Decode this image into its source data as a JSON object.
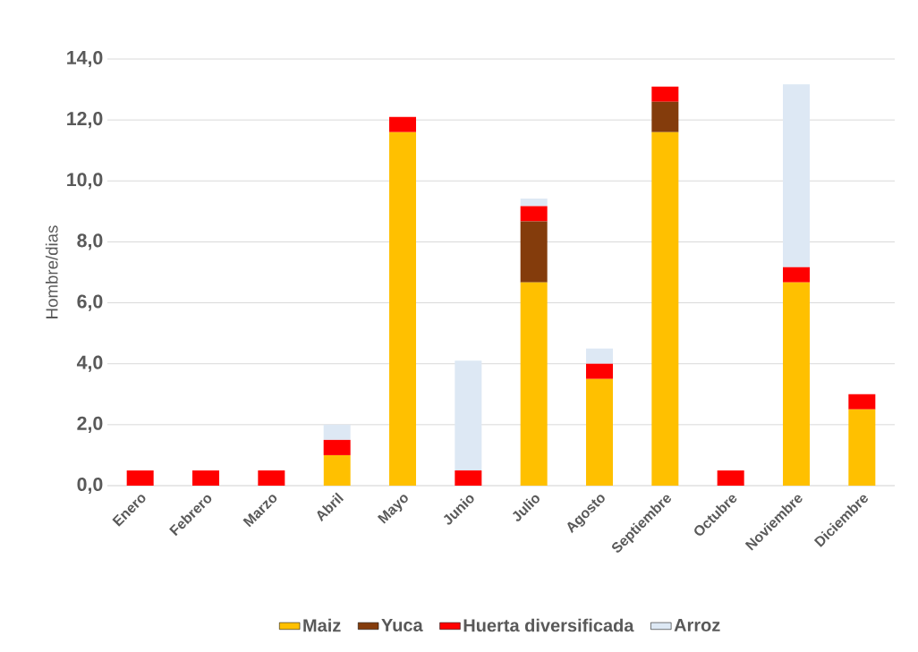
{
  "chart_data": {
    "type": "bar",
    "stacked": true,
    "ylabel": "Hombre/dias",
    "categories": [
      "Enero",
      "Febrero",
      "Marzo",
      "Abril",
      "Mayo",
      "Junio",
      "Julio",
      "Agosto",
      "Septiembre",
      "Octubre",
      "Noviembre",
      "Diciembre"
    ],
    "series": [
      {
        "name": "Maiz",
        "color": "#ffc000",
        "values": [
          0,
          0,
          0,
          1.0,
          11.6,
          0,
          6.67,
          3.5,
          11.6,
          0,
          6.67,
          2.5
        ]
      },
      {
        "name": "Yuca",
        "color": "#843c0c",
        "values": [
          0,
          0,
          0,
          0,
          0,
          0,
          2.0,
          0,
          1.0,
          0,
          0,
          0
        ]
      },
      {
        "name": "Huerta diversificada",
        "color": "#ff0000",
        "values": [
          0.5,
          0.5,
          0.5,
          0.5,
          0.5,
          0.5,
          0.5,
          0.5,
          0.5,
          0.5,
          0.5,
          0.5
        ]
      },
      {
        "name": "Arroz",
        "color": "#dde8f4",
        "values": [
          0,
          0,
          0,
          0.5,
          0,
          3.6,
          0.25,
          0.5,
          0,
          0,
          6.0,
          0
        ]
      }
    ],
    "ylim": [
      0,
      14
    ],
    "yticks": [
      {
        "value": 0,
        "label": "0,0"
      },
      {
        "value": 2,
        "label": "2,0"
      },
      {
        "value": 4,
        "label": "4,0"
      },
      {
        "value": 6,
        "label": "6,0"
      },
      {
        "value": 8,
        "label": "8,0"
      },
      {
        "value": 10,
        "label": "10,0"
      },
      {
        "value": 12,
        "label": "12,0"
      },
      {
        "value": 14,
        "label": "14,0"
      }
    ],
    "grid": "y",
    "legend": "bottom"
  }
}
